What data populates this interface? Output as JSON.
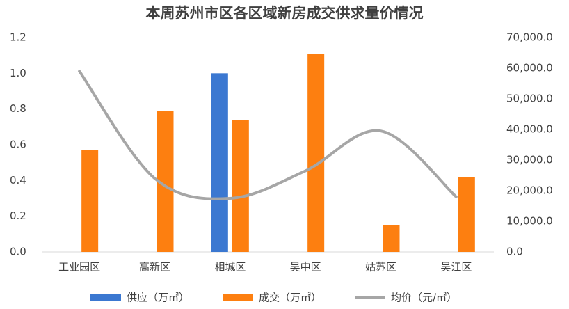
{
  "chart_data": {
    "type": "bar-line",
    "title": "本周苏州市区各区域新房成交供求量价情况",
    "categories": [
      "工业园区",
      "高新区",
      "相城区",
      "吴中区",
      "姑苏区",
      "吴江区"
    ],
    "series": [
      {
        "name": "供应（万㎡）",
        "color": "#3b78d1",
        "type": "bar",
        "values": [
          null,
          null,
          1.0,
          null,
          null,
          null
        ]
      },
      {
        "name": "成交（万㎡）",
        "color": "#fd7f10",
        "type": "bar",
        "values": [
          0.57,
          0.79,
          0.74,
          1.11,
          0.15,
          0.42
        ]
      },
      {
        "name": "均价（元/㎡）",
        "color": "#a6a6a6",
        "type": "line",
        "axis": "y2",
        "smooth": true,
        "values": [
          59000,
          24000,
          17500,
          26500,
          39500,
          18000
        ]
      }
    ],
    "ylim": [
      0,
      1.2
    ],
    "yticks": [
      {
        "value": 0,
        "label": "0.0"
      },
      0.2,
      0.4,
      0.6,
      0.8,
      {
        "value": 1,
        "label": "1.0"
      },
      1.2
    ],
    "y2lim": [
      0,
      70000
    ],
    "y2ticks": [
      {
        "value": 0,
        "label": "0.0"
      },
      {
        "value": 10000,
        "label": "10,000.0"
      },
      {
        "value": 20000,
        "label": "20,000.0"
      },
      {
        "value": 30000,
        "label": "30,000.0"
      },
      {
        "value": 40000,
        "label": "40,000.0"
      },
      {
        "value": 50000,
        "label": "50,000.0"
      },
      {
        "value": 60000,
        "label": "60,000.0"
      },
      {
        "value": 70000,
        "label": "70,000.0"
      }
    ],
    "grid": false,
    "legend": "bottom"
  }
}
